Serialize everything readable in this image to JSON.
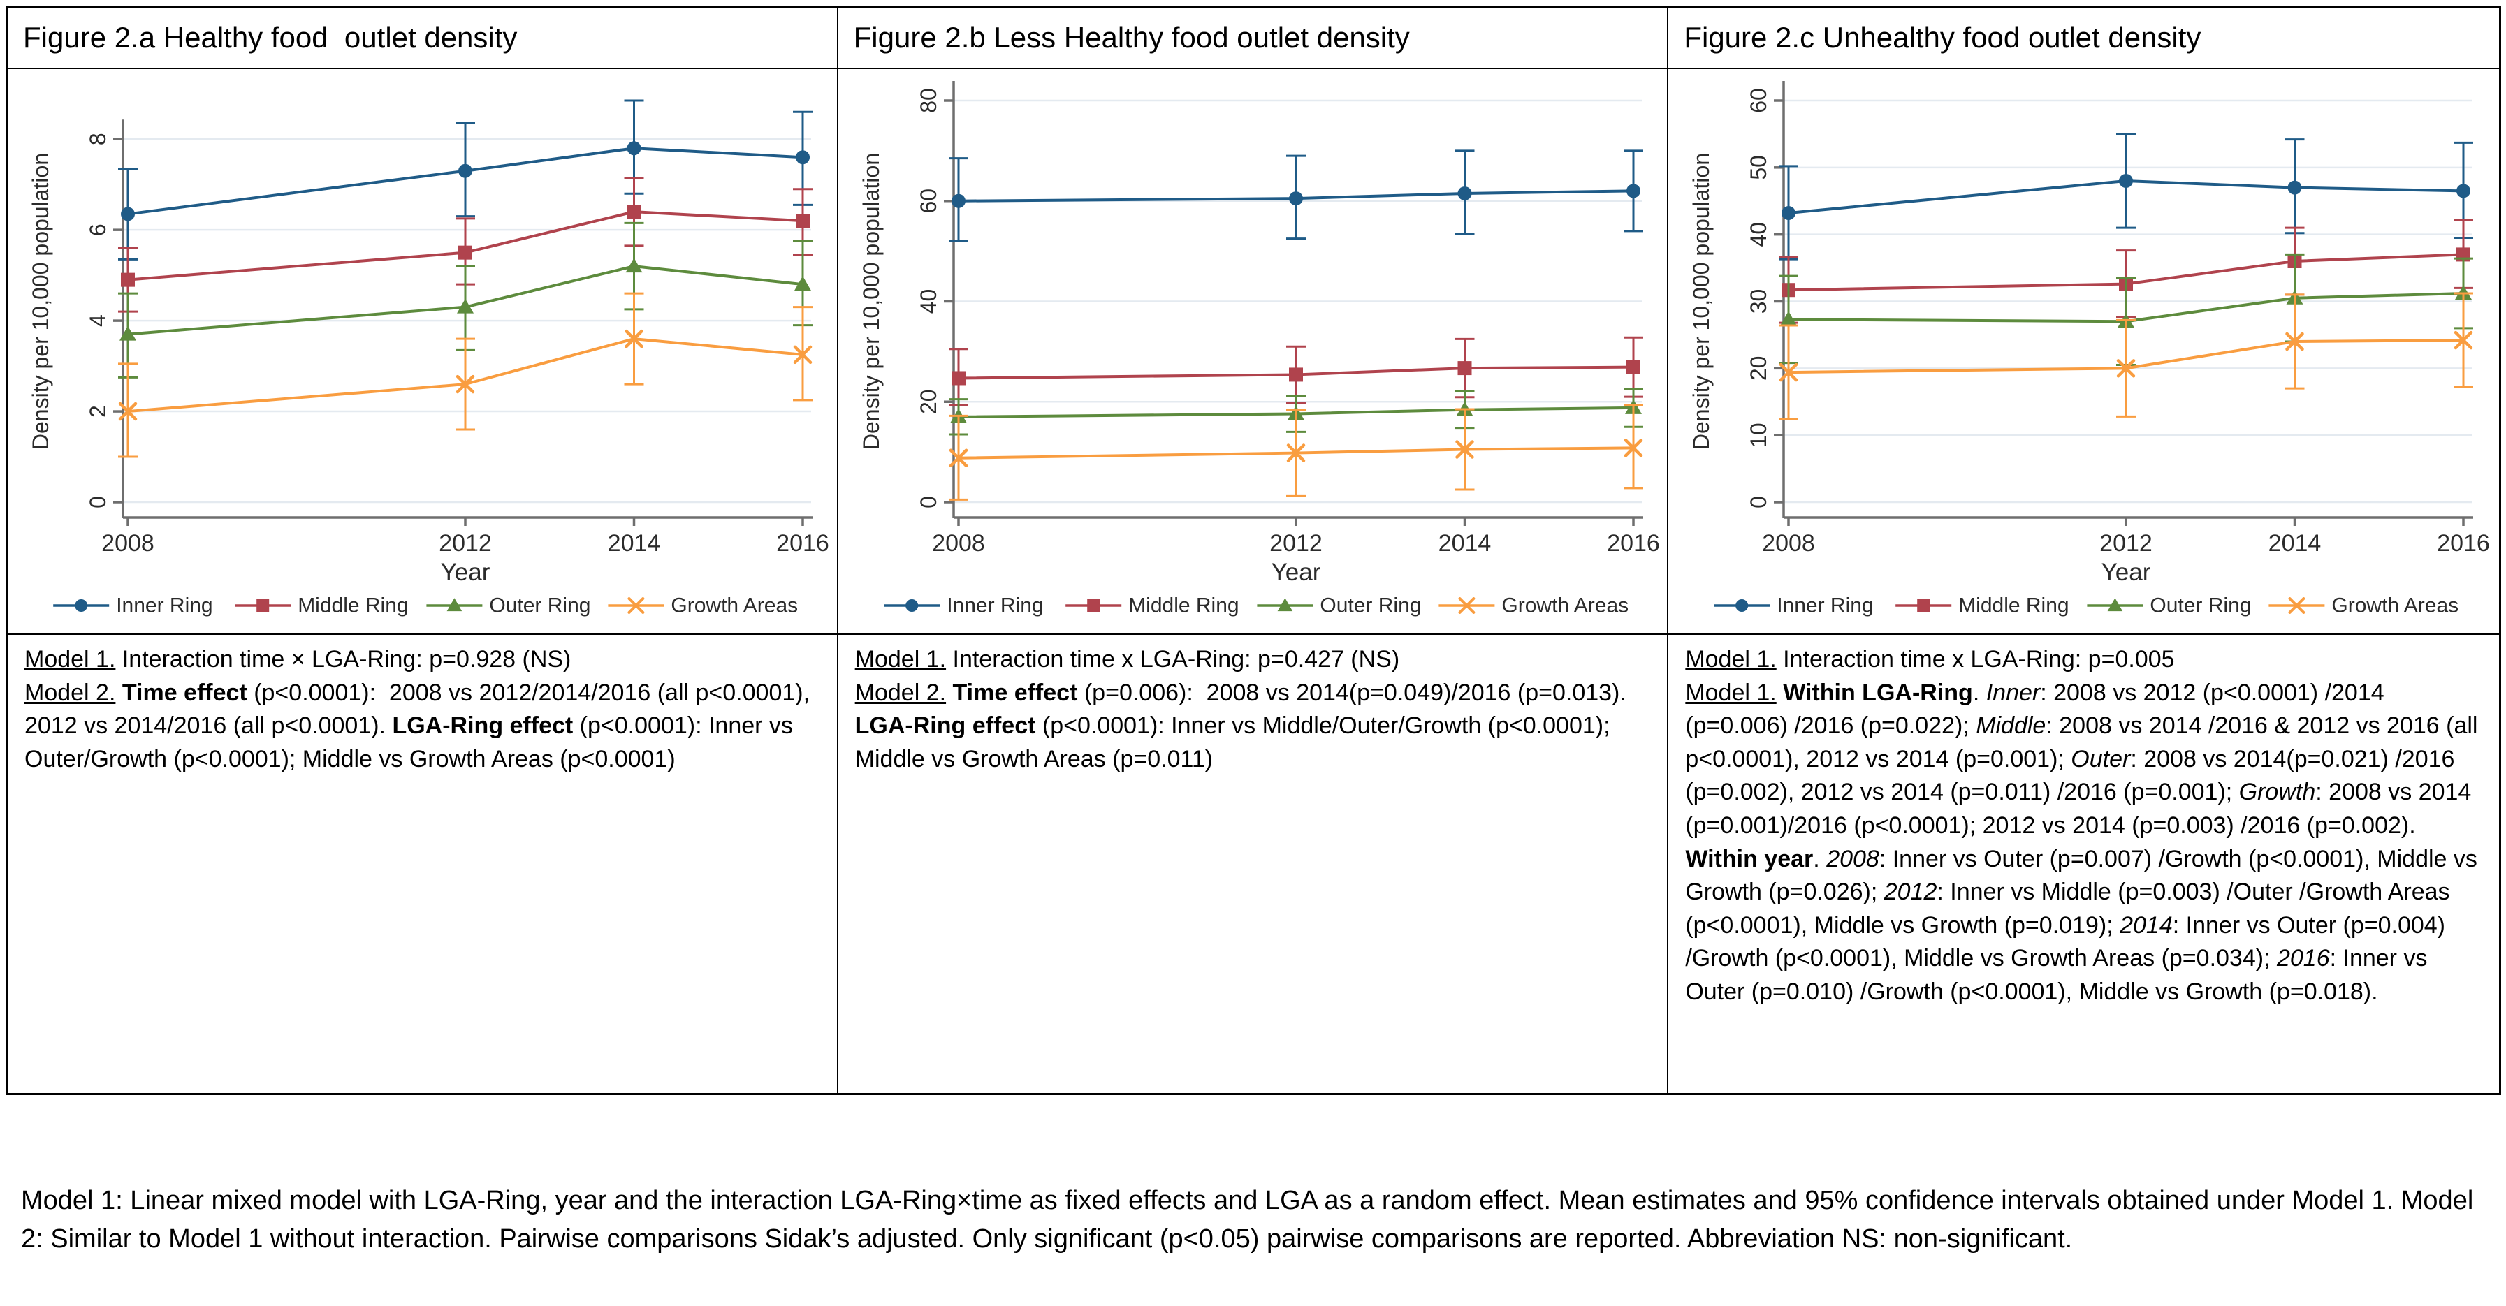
{
  "page_background": "#ffffff",
  "axis_color": "#6e6e6e",
  "grid_color": "#e4eaf0",
  "table": {
    "columns": [
      {
        "title": "Figure 2.a Healthy food  outlet density",
        "notes": [
          [
            {
              "t": "Model 1.",
              "u": true
            },
            {
              "t": " Interaction time × LGA-Ring: p=0.928 (NS)"
            }
          ],
          [
            {
              "t": "Model 2.",
              "u": true
            },
            {
              "t": " "
            },
            {
              "t": "Time effect",
              "b": true
            },
            {
              "t": " (p<0.0001):  2008 vs 2012/2014/2016 (all p<0.0001), 2012 vs 2014/2016 (all p<0.0001). "
            },
            {
              "t": "LGA-Ring effect",
              "b": true
            },
            {
              "t": " (p<0.0001): Inner vs Outer/Growth (p<0.0001); Middle vs Growth Areas (p<0.0001)"
            }
          ]
        ]
      },
      {
        "title": "Figure 2.b Less Healthy food outlet density",
        "notes": [
          [
            {
              "t": "Model 1.",
              "u": true
            },
            {
              "t": " Interaction time x LGA-Ring: p=0.427 (NS)"
            }
          ],
          [
            {
              "t": "Model 2.",
              "u": true
            },
            {
              "t": " "
            },
            {
              "t": "Time effect",
              "b": true
            },
            {
              "t": " (p=0.006):  2008 vs 2014(p=0.049)/2016 (p=0.013). "
            },
            {
              "t": "LGA-Ring effect",
              "b": true
            },
            {
              "t": " (p<0.0001): Inner vs Middle/Outer/Growth (p<0.0001); Middle vs Growth Areas (p=0.011)"
            }
          ]
        ]
      },
      {
        "title": "Figure 2.c Unhealthy food outlet density",
        "notes": [
          [
            {
              "t": "Model 1.",
              "u": true
            },
            {
              "t": " Interaction time x LGA-Ring: p=0.005"
            }
          ],
          [
            {
              "t": "Model 1.",
              "u": true
            },
            {
              "t": " "
            },
            {
              "t": "Within LGA-Ring",
              "b": true
            },
            {
              "t": ". "
            },
            {
              "t": "Inner",
              "i": true
            },
            {
              "t": ": 2008 vs 2012 (p<0.0001) /2014 (p=0.006) /2016 (p=0.022); "
            },
            {
              "t": "Middle",
              "i": true
            },
            {
              "t": ": 2008 vs 2014 /2016 & 2012 vs 2016 (all p<0.0001), 2012 vs 2014 (p=0.001); "
            },
            {
              "t": "Outer",
              "i": true
            },
            {
              "t": ": 2008 vs 2014(p=0.021) /2016 (p=0.002), 2012 vs 2014 (p=0.011) /2016 (p=0.001); "
            },
            {
              "t": "Growth",
              "i": true
            },
            {
              "t": ": 2008 vs 2014 (p=0.001)/2016 (p<0.0001); 2012 vs 2014 (p=0.003) /2016 (p=0.002). "
            },
            {
              "t": "Within year",
              "b": true
            },
            {
              "t": ". "
            },
            {
              "t": "2008",
              "i": true
            },
            {
              "t": ": Inner vs Outer (p=0.007) /Growth (p<0.0001), Middle vs Growth (p=0.026); "
            },
            {
              "t": "2012",
              "i": true
            },
            {
              "t": ": Inner vs Middle (p=0.003) /Outer /Growth Areas (p<0.0001), Middle vs Growth (p=0.019); "
            },
            {
              "t": "2014",
              "i": true
            },
            {
              "t": ": Inner vs Outer (p=0.004) /Growth (p<0.0001), Middle vs Growth Areas (p=0.034); "
            },
            {
              "t": "2016",
              "i": true
            },
            {
              "t": ": Inner vs Outer (p=0.010) /Growth (p<0.0001), Middle vs Growth (p=0.018)."
            }
          ]
        ]
      }
    ]
  },
  "chart_data": [
    {
      "type": "line",
      "title": "Figure 2.a Healthy food outlet density",
      "x": [
        2008,
        2012,
        2014,
        2016
      ],
      "xlabel": "Year",
      "ylabel": "Density per 10,000 population",
      "ylim": [
        0,
        8
      ],
      "yticks": [
        0,
        2,
        4,
        6,
        8
      ],
      "grid": true,
      "legend_position": "bottom",
      "error_bars": "95% confidence intervals",
      "series": [
        {
          "name": "Inner Ring",
          "marker": "circle",
          "color": "#1f5b87",
          "values": [
            6.35,
            7.3,
            7.8,
            7.6
          ],
          "ci_low": [
            5.35,
            6.3,
            6.8,
            6.55
          ],
          "ci_high": [
            7.35,
            8.35,
            8.85,
            8.6
          ]
        },
        {
          "name": "Middle Ring",
          "marker": "square",
          "color": "#b0434d",
          "values": [
            4.9,
            5.5,
            6.4,
            6.2
          ],
          "ci_low": [
            4.2,
            4.8,
            5.65,
            5.45
          ],
          "ci_high": [
            5.6,
            6.25,
            7.15,
            6.9
          ]
        },
        {
          "name": "Outer Ring",
          "marker": "triangle",
          "color": "#5d8b3d",
          "values": [
            3.7,
            4.3,
            5.2,
            4.8
          ],
          "ci_low": [
            2.75,
            3.35,
            4.25,
            3.9
          ],
          "ci_high": [
            4.6,
            5.2,
            6.15,
            5.75
          ]
        },
        {
          "name": "Growth Areas",
          "marker": "x",
          "color": "#f99d40",
          "values": [
            2.0,
            2.6,
            3.6,
            3.25
          ],
          "ci_low": [
            1.0,
            1.6,
            2.6,
            2.25
          ],
          "ci_high": [
            3.05,
            3.6,
            4.6,
            4.3
          ]
        }
      ]
    },
    {
      "type": "line",
      "title": "Figure 2.b Less Healthy food outlet density",
      "x": [
        2008,
        2012,
        2014,
        2016
      ],
      "xlabel": "Year",
      "ylabel": "Density per 10,000 population",
      "ylim": [
        0,
        80
      ],
      "yticks": [
        0,
        20,
        40,
        60,
        80
      ],
      "grid": true,
      "legend_position": "bottom",
      "error_bars": "95% confidence intervals",
      "series": [
        {
          "name": "Inner Ring",
          "marker": "circle",
          "color": "#1f5b87",
          "values": [
            60,
            60.5,
            61.5,
            62
          ],
          "ci_low": [
            52,
            52.5,
            53.5,
            54
          ],
          "ci_high": [
            68.5,
            69,
            70,
            70
          ]
        },
        {
          "name": "Middle Ring",
          "marker": "square",
          "color": "#b0434d",
          "values": [
            24.7,
            25.4,
            26.7,
            26.9
          ],
          "ci_low": [
            19.3,
            19.8,
            20.9,
            21
          ],
          "ci_high": [
            30.5,
            31,
            32.5,
            32.8
          ]
        },
        {
          "name": "Outer Ring",
          "marker": "triangle",
          "color": "#5d8b3d",
          "values": [
            17.0,
            17.6,
            18.4,
            18.8
          ],
          "ci_low": [
            13.5,
            14,
            14.8,
            15
          ],
          "ci_high": [
            20.5,
            21.2,
            22.2,
            22.5
          ]
        },
        {
          "name": "Growth Areas",
          "marker": "x",
          "color": "#f99d40",
          "values": [
            8.8,
            9.8,
            10.5,
            10.8
          ],
          "ci_low": [
            0.5,
            1.2,
            2.5,
            2.8
          ],
          "ci_high": [
            17.2,
            18.3,
            18.5,
            19.3
          ]
        }
      ]
    },
    {
      "type": "line",
      "title": "Figure 2.c Unhealthy food outlet density",
      "x": [
        2008,
        2012,
        2014,
        2016
      ],
      "xlabel": "Year",
      "ylabel": "Density per 10,000 population",
      "ylim": [
        0,
        60
      ],
      "yticks": [
        0,
        10,
        20,
        30,
        40,
        50,
        60
      ],
      "grid": true,
      "legend_position": "bottom",
      "error_bars": "95% confidence intervals",
      "series": [
        {
          "name": "Inner Ring",
          "marker": "circle",
          "color": "#1f5b87",
          "values": [
            43.2,
            48,
            47,
            46.5
          ],
          "ci_low": [
            36.3,
            41,
            40.2,
            39.5
          ],
          "ci_high": [
            50.2,
            55,
            54.2,
            53.7
          ]
        },
        {
          "name": "Middle Ring",
          "marker": "square",
          "color": "#b0434d",
          "values": [
            31.7,
            32.6,
            36,
            37
          ],
          "ci_low": [
            26.8,
            27.6,
            31,
            32
          ],
          "ci_high": [
            36.6,
            37.6,
            41,
            42.2
          ]
        },
        {
          "name": "Outer Ring",
          "marker": "triangle",
          "color": "#5d8b3d",
          "values": [
            27.3,
            27,
            30.5,
            31.2
          ],
          "ci_low": [
            20.8,
            20.5,
            24,
            26
          ],
          "ci_high": [
            33.8,
            33.5,
            37,
            36.4
          ]
        },
        {
          "name": "Growth Areas",
          "marker": "x",
          "color": "#f99d40",
          "values": [
            19.4,
            20,
            24,
            24.2
          ],
          "ci_low": [
            12.4,
            12.8,
            17,
            17.2
          ],
          "ci_high": [
            26.4,
            27.2,
            31,
            31.2
          ]
        }
      ]
    }
  ],
  "footnote": "Model 1: Linear mixed model with LGA-Ring, year and the interaction LGA-Ring×time as fixed effects and LGA as a random effect. Mean estimates and 95% confidence intervals obtained under Model 1. Model 2: Similar to Model 1 without interaction. Pairwise comparisons Sidak’s adjusted. Only significant (p<0.05) pairwise comparisons are reported. Abbreviation NS: non-significant."
}
